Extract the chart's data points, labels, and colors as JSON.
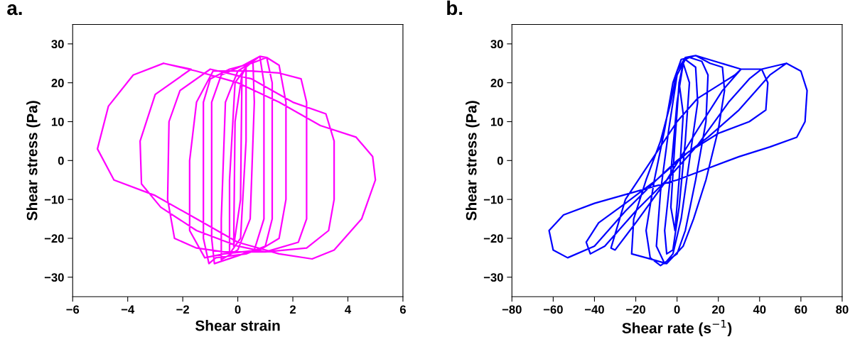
{
  "chart_data": [
    {
      "type": "line",
      "title": "a.",
      "xlabel": "Shear strain",
      "ylabel": "Shear stress (Pa)",
      "xlim": [
        -6,
        6
      ],
      "xticks": [
        -6,
        -4,
        -2,
        0,
        2,
        4,
        6
      ],
      "ylim": [
        -35,
        35
      ],
      "yticks": [
        -30,
        -20,
        -10,
        0,
        10,
        20,
        30
      ],
      "grid": false,
      "legend": false,
      "marker": "none",
      "line_style": "solid",
      "series": [
        {
          "color": "#ff00ff",
          "x": [
            0.15,
            0.1,
            -0.15,
            -0.1,
            0.15,
            0.3,
            0.3,
            0.1,
            -0.3,
            -0.3,
            -0.1,
            0.3,
            0.55,
            0.6,
            0.45,
            0,
            -0.6,
            -0.6,
            -0.45,
            0,
            0.55,
            0.8,
            0.95,
            0.95,
            0.6,
            0,
            -0.85,
            -0.95,
            -0.95,
            -0.6,
            0.2,
            0.8,
            1.05,
            1.25,
            1.25,
            1,
            0.3,
            -0.8,
            -1.05,
            -1.25,
            -1.25,
            -1,
            -0.3,
            0.5,
            1.05,
            1.5,
            1.75,
            1.75,
            1.5,
            0.8,
            -0.5,
            -1.2,
            -1.75,
            -1.75,
            -1.5,
            -0.9,
            0.5,
            1.5,
            2.3,
            2.5,
            2.5,
            2.2,
            1,
            -0.5,
            -1.5,
            -2.3,
            -2.55,
            -2.5,
            -2.1,
            -1,
            0.5,
            2,
            3.2,
            3.5,
            3.5,
            3.3,
            2.5,
            1,
            0,
            -1.5,
            -2.8,
            -3.5,
            -3.55,
            -3,
            -1.7,
            -2.7,
            -1.5,
            0,
            1.5,
            3,
            4.3,
            4.9,
            5,
            4.5,
            3.5,
            2.7,
            1.5,
            0,
            -1.5,
            -3,
            -4.5,
            -5.1,
            -4.7,
            -3.8,
            -2.7
          ],
          "values": [
            22,
            -10,
            -22,
            10,
            22,
            24,
            5,
            -20,
            -24,
            -5,
            20,
            24,
            25.5,
            15,
            -15,
            -23,
            -25.5,
            -15,
            15,
            23,
            25.5,
            26.8,
            20,
            -15,
            -23,
            -24.5,
            -26.5,
            -20,
            15,
            22,
            24.5,
            26.8,
            26.5,
            20,
            -15,
            -22,
            -24,
            -25,
            -26.5,
            -20,
            15,
            21,
            23.5,
            25,
            26.5,
            24.5,
            15,
            -10,
            -20,
            -23,
            -24,
            -25,
            -18,
            0,
            15,
            23,
            23,
            22.5,
            21,
            15,
            -15,
            -21,
            -23.5,
            -23.5,
            -22.5,
            -20,
            -10,
            10,
            18,
            23.5,
            21,
            15,
            12,
            5,
            -10,
            -18,
            -22.5,
            -23.5,
            -22,
            -18,
            -12,
            -6,
            5,
            17,
            23.5,
            25,
            23,
            20,
            15,
            9,
            6,
            1,
            -5,
            -15,
            -23,
            -25.3,
            -24,
            -21,
            -15,
            -9,
            -5,
            3,
            14,
            22,
            25
          ]
        }
      ]
    },
    {
      "type": "line",
      "title": "b.",
      "xlabel": "Shear rate (s$^{−1}$)",
      "ylabel": "Shear stress (Pa)",
      "xlim": [
        -80,
        80
      ],
      "xticks": [
        -80,
        -60,
        -40,
        -20,
        0,
        20,
        40,
        60,
        80
      ],
      "ylim": [
        -35,
        35
      ],
      "yticks": [
        -30,
        -20,
        -10,
        0,
        10,
        20,
        30
      ],
      "grid": false,
      "legend": false,
      "marker": "none",
      "line_style": "solid",
      "series": [
        {
          "color": "#0000ff",
          "x": [
            1,
            3,
            1,
            -1,
            -3,
            -1,
            1,
            3,
            6,
            4,
            1,
            -2,
            -5,
            -6,
            -3,
            0,
            3,
            4,
            9,
            10,
            6,
            2,
            -2,
            -6,
            -10,
            -8,
            -4,
            0,
            4,
            6,
            12,
            15,
            14,
            9,
            4,
            0,
            -8,
            -13,
            -15,
            -11,
            -6,
            -2,
            2,
            6,
            9,
            16,
            22,
            23,
            20,
            14,
            8,
            3,
            -5,
            -15,
            -22,
            -21,
            -15,
            -8,
            -3,
            0,
            4,
            9,
            31,
            28,
            10,
            0,
            -10,
            -25,
            -32,
            -30,
            -20,
            -5,
            10,
            22,
            31,
            41,
            44,
            43,
            35,
            20,
            5,
            -10,
            -25,
            -38,
            -44,
            -42,
            -35,
            -20,
            -5,
            10,
            25,
            35,
            41,
            53,
            60,
            63,
            62,
            58,
            45,
            30,
            15,
            0,
            -20,
            -40,
            -55,
            -62,
            -60,
            -53,
            -40,
            -25,
            -10,
            0,
            15,
            30,
            45,
            53
          ],
          "values": [
            20,
            12,
            -5,
            -18,
            -12,
            5,
            20,
            25,
            20,
            5,
            -12,
            -23,
            -24,
            -18,
            -3,
            15,
            25,
            26,
            24,
            15,
            0,
            -15,
            -24,
            -26.5,
            -22,
            -8,
            8,
            22,
            26,
            26.5,
            25.5,
            22,
            10,
            -5,
            -18,
            -24,
            -27,
            -25,
            -18,
            -5,
            8,
            20,
            26,
            26.5,
            27,
            25,
            24,
            18,
            8,
            -5,
            -15,
            -22,
            -26.5,
            -25,
            -24,
            -15,
            -5,
            5,
            15,
            23,
            26.5,
            27,
            23.5,
            22,
            16,
            10,
            2,
            -10,
            -22.5,
            -23,
            -16,
            -5,
            8,
            18,
            23.5,
            23.5,
            20,
            13,
            10,
            7,
            2,
            -5,
            -11,
            -16,
            -21,
            -24,
            -22,
            -13,
            -5,
            4,
            15,
            21,
            23.5,
            25,
            23,
            18,
            10,
            6,
            3.5,
            1,
            -2,
            -5,
            -8,
            -11,
            -14,
            -18,
            -23,
            -25,
            -22,
            -13,
            -5,
            0,
            6,
            13,
            22,
            25
          ]
        }
      ]
    }
  ]
}
